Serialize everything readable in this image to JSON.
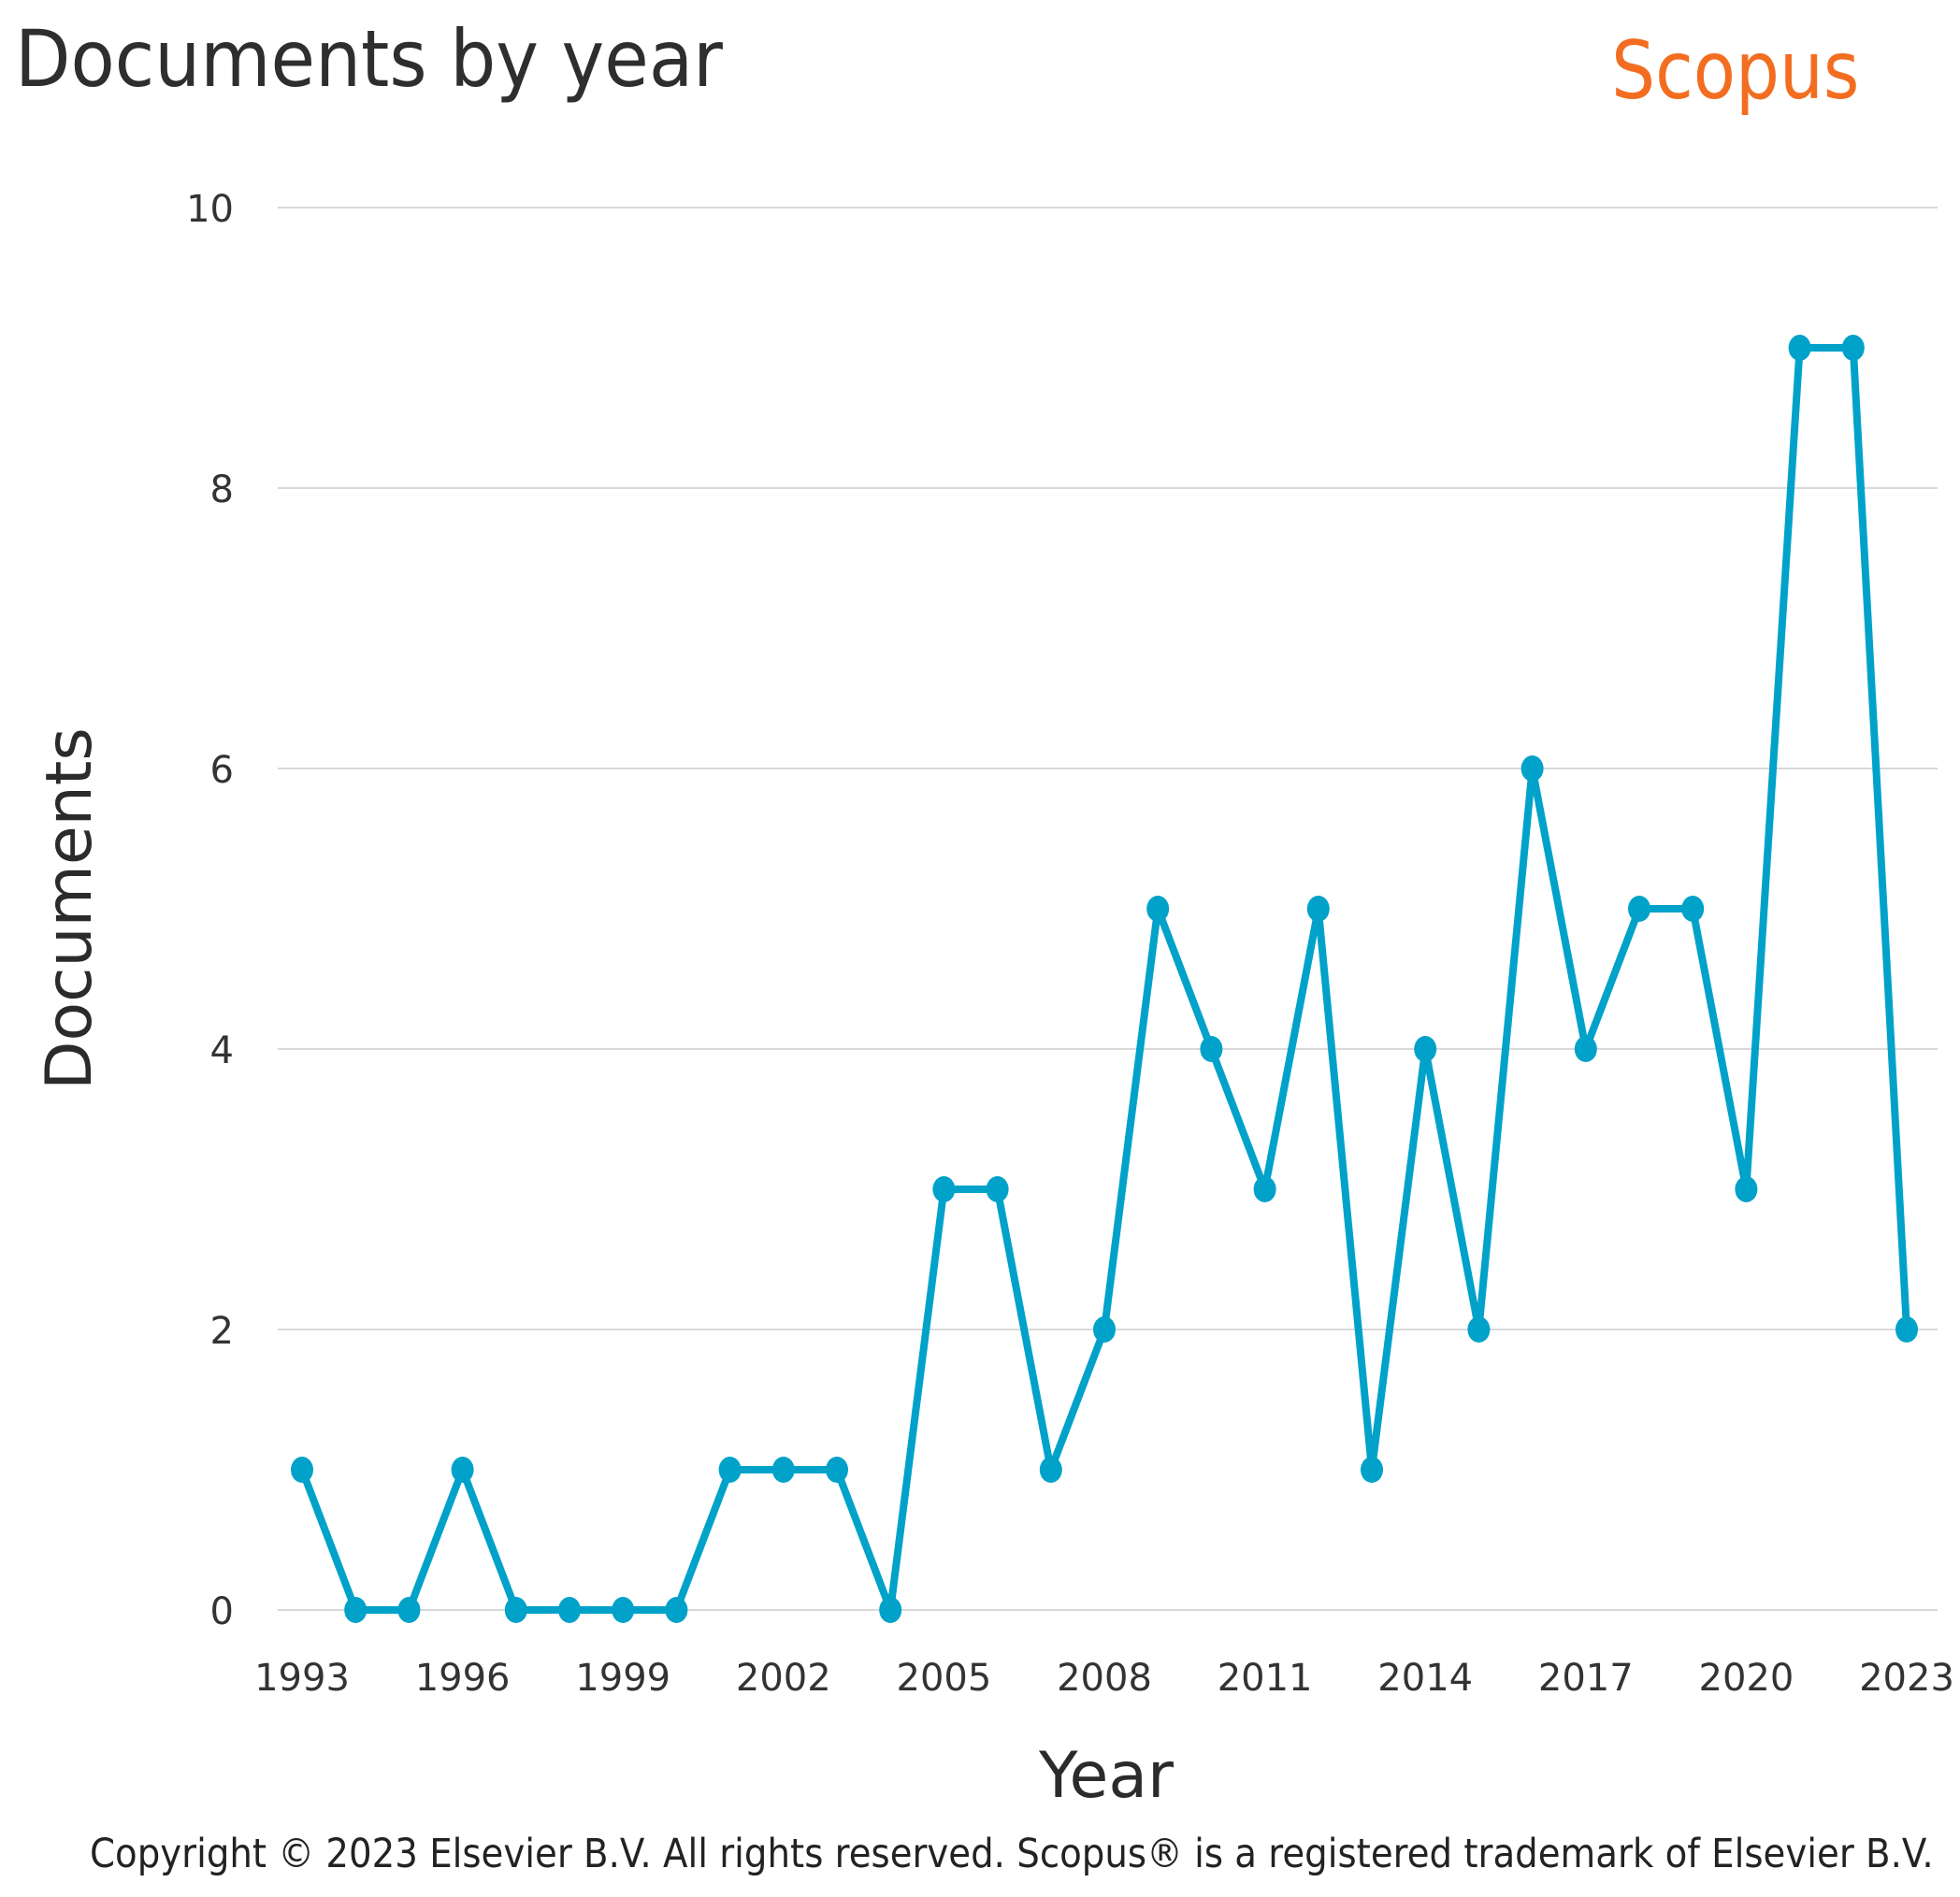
{
  "header": {
    "title": "Documents by year",
    "brand": "Scopus"
  },
  "footer": {
    "copyright": "Copyright © 2023 Elsevier B.V. All rights reserved. Scopus® is a registered trademark of Elsevier B.V."
  },
  "colors": {
    "line": "#00a2c9",
    "grid": "#d9d9d9",
    "brand": "#f36d21"
  },
  "chart_data": {
    "type": "line",
    "title": "Documents by year",
    "xlabel": "Year",
    "ylabel": "Documents",
    "xlim": [
      1993,
      2023
    ],
    "ylim": [
      0,
      10
    ],
    "x_ticks": [
      "1993",
      "1996",
      "1999",
      "2002",
      "2005",
      "2008",
      "2011",
      "2014",
      "2017",
      "2020",
      "2023"
    ],
    "y_ticks": [
      "0",
      "2",
      "4",
      "6",
      "8",
      "10"
    ],
    "grid": true,
    "x": [
      1993,
      1994,
      1995,
      1996,
      1997,
      1998,
      1999,
      2000,
      2001,
      2002,
      2003,
      2004,
      2005,
      2006,
      2007,
      2008,
      2009,
      2010,
      2011,
      2012,
      2013,
      2014,
      2015,
      2016,
      2017,
      2018,
      2019,
      2020,
      2021,
      2022,
      2023
    ],
    "series": [
      {
        "values": [
          1,
          0,
          0,
          1,
          0,
          0,
          0,
          0,
          1,
          1,
          1,
          0,
          3,
          3,
          1,
          2,
          5,
          4,
          3,
          5,
          1,
          4,
          2,
          6,
          4,
          5,
          5,
          3,
          9,
          9,
          2
        ]
      }
    ]
  }
}
